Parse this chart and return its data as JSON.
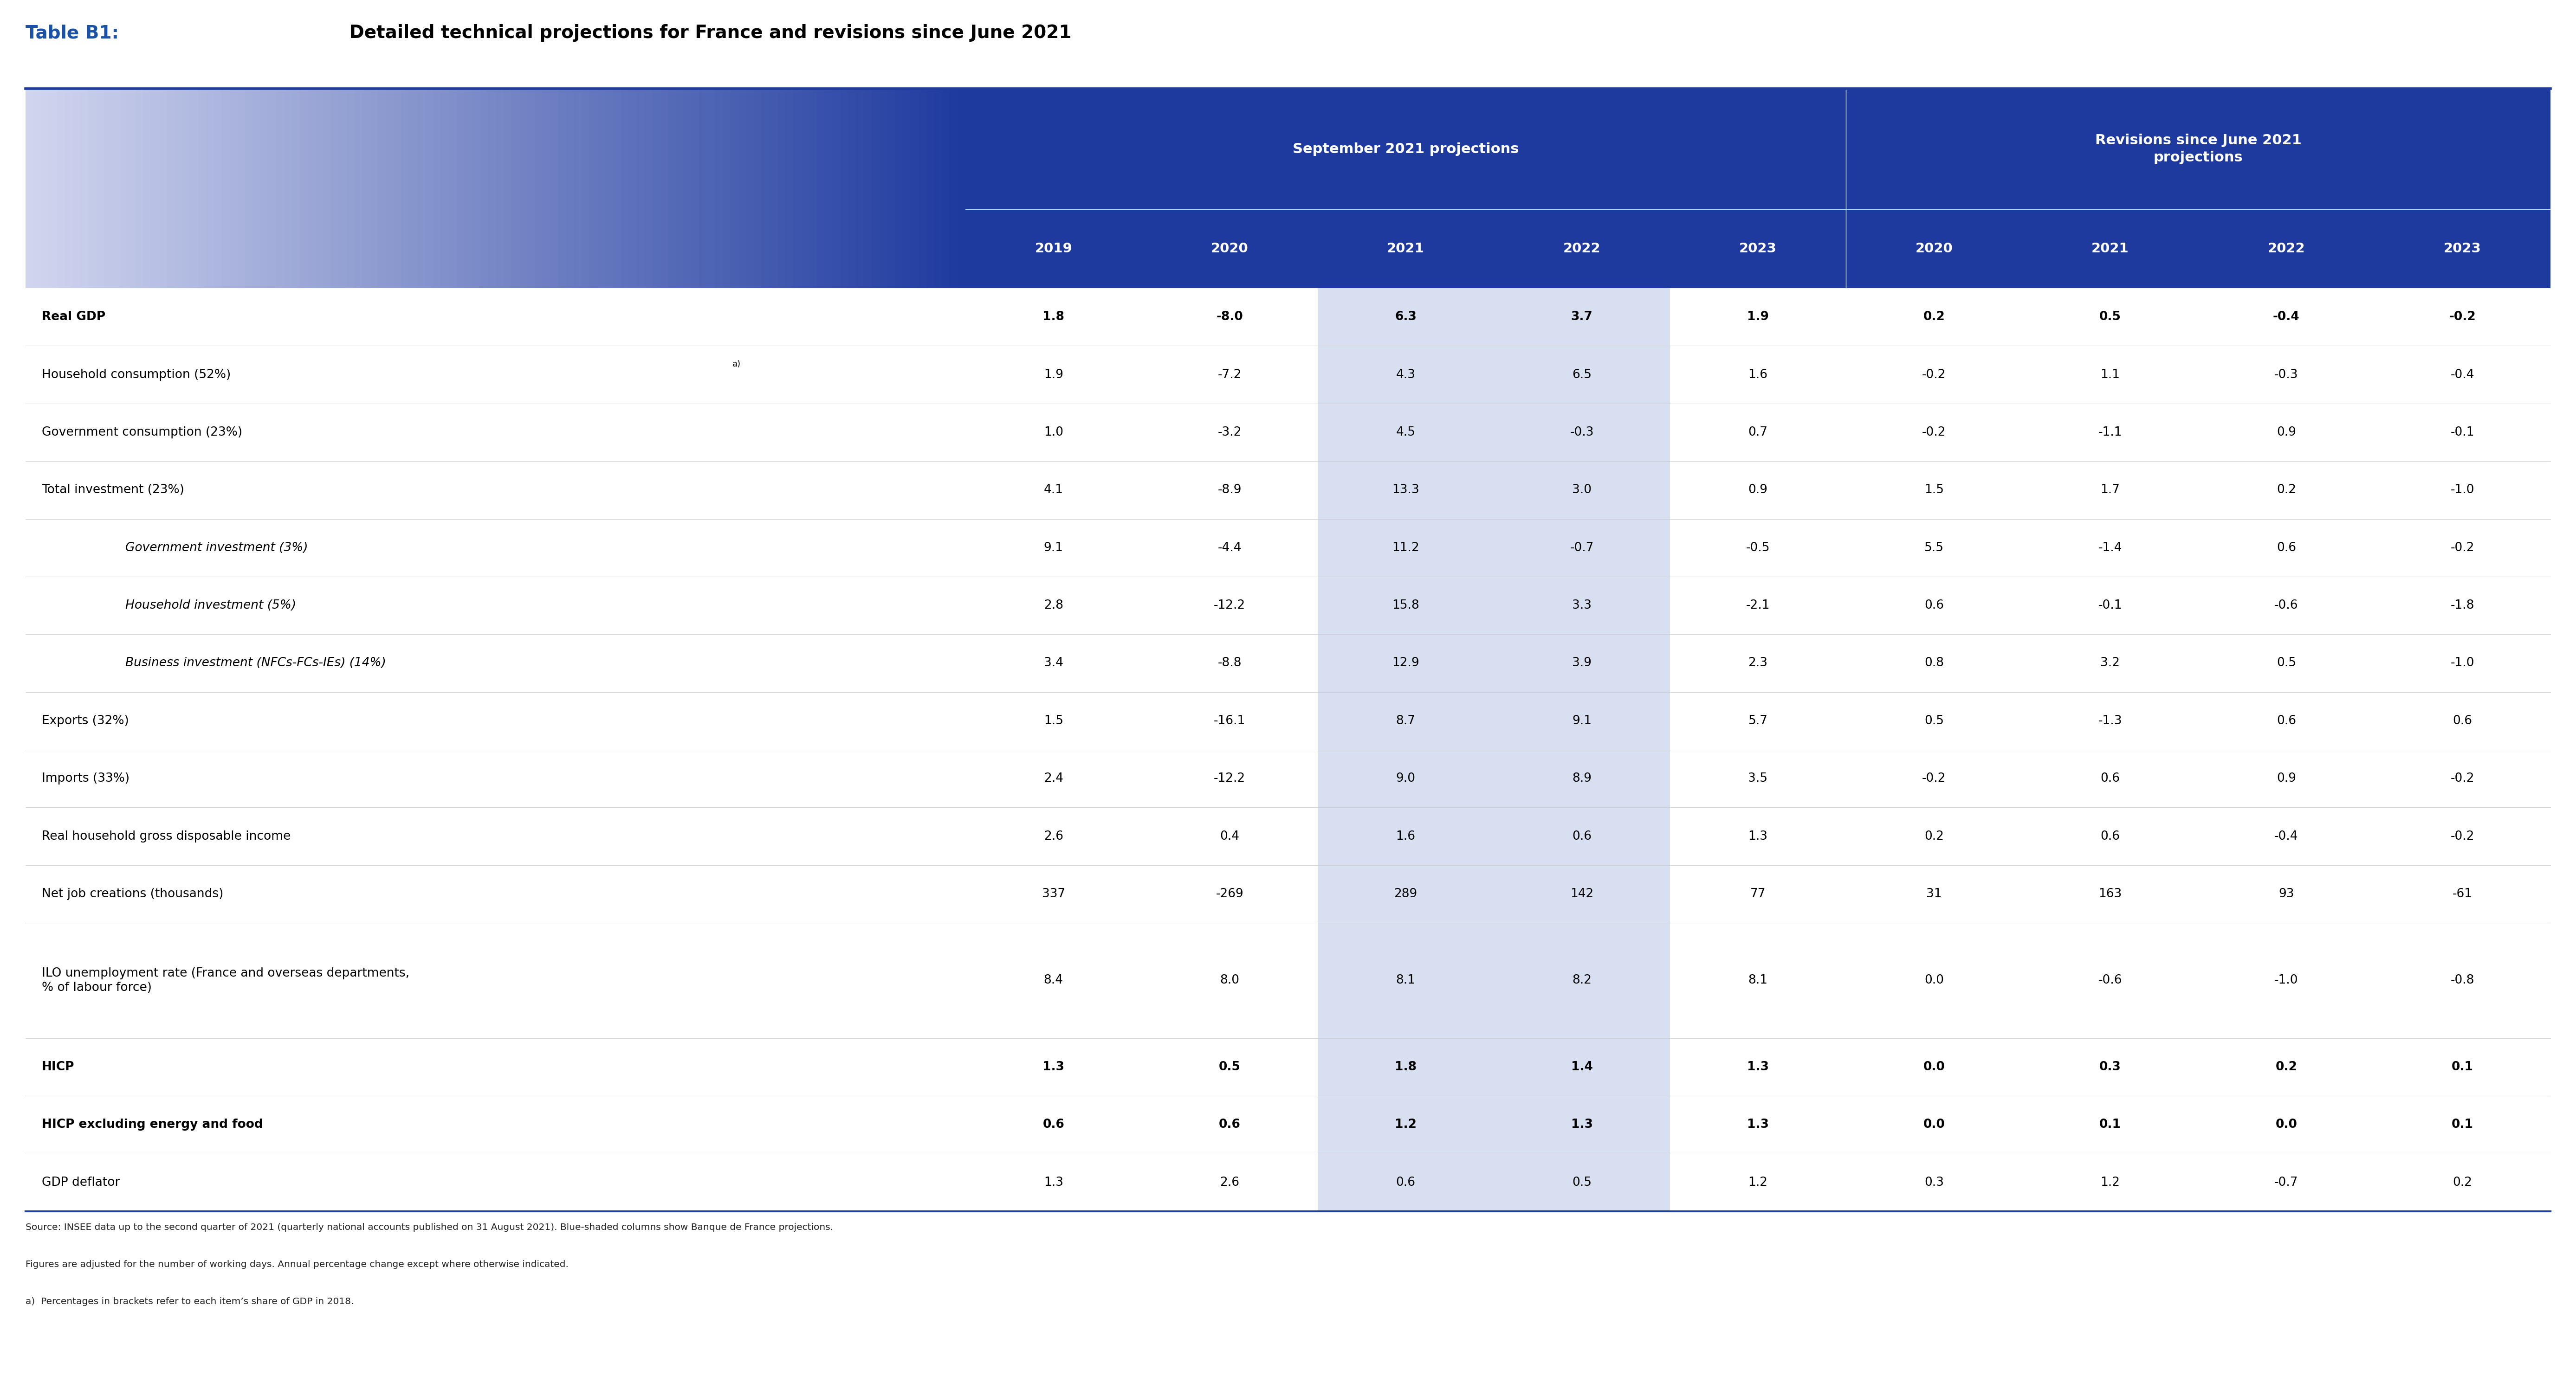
{
  "title_prefix": "Table B1:",
  "title_rest": " Detailed technical projections for France and revisions since June 2021",
  "header1_left": "September 2021 projections",
  "header1_right": "Revisions since June 2021\nprojections",
  "col_years": [
    "2019",
    "2020",
    "2021",
    "2022",
    "2023",
    "2020",
    "2021",
    "2022",
    "2023"
  ],
  "rows": [
    {
      "label": "Real GDP",
      "bold": true,
      "italic": false,
      "indent": 0,
      "values": [
        "1.8",
        "-8.0",
        "6.3",
        "3.7",
        "1.9",
        "0.2",
        "0.5",
        "-0.4",
        "-0.2"
      ]
    },
    {
      "label": "Household consumption (52%)",
      "label_superscript": "a)",
      "bold": false,
      "italic": false,
      "indent": 0,
      "values": [
        "1.9",
        "-7.2",
        "4.3",
        "6.5",
        "1.6",
        "-0.2",
        "1.1",
        "-0.3",
        "-0.4"
      ]
    },
    {
      "label": "Government consumption (23%)",
      "bold": false,
      "italic": false,
      "indent": 0,
      "values": [
        "1.0",
        "-3.2",
        "4.5",
        "-0.3",
        "0.7",
        "-0.2",
        "-1.1",
        "0.9",
        "-0.1"
      ]
    },
    {
      "label": "Total investment (23%)",
      "bold": false,
      "italic": false,
      "indent": 0,
      "values": [
        "4.1",
        "-8.9",
        "13.3",
        "3.0",
        "0.9",
        "1.5",
        "1.7",
        "0.2",
        "-1.0"
      ]
    },
    {
      "label": "Government investment (3%)",
      "bold": false,
      "italic": true,
      "indent": 1,
      "values": [
        "9.1",
        "-4.4",
        "11.2",
        "-0.7",
        "-0.5",
        "5.5",
        "-1.4",
        "0.6",
        "-0.2"
      ]
    },
    {
      "label": "Household investment (5%)",
      "bold": false,
      "italic": true,
      "indent": 1,
      "values": [
        "2.8",
        "-12.2",
        "15.8",
        "3.3",
        "-2.1",
        "0.6",
        "-0.1",
        "-0.6",
        "-1.8"
      ]
    },
    {
      "label": "Business investment (NFCs-FCs-IEs) (14%)",
      "bold": false,
      "italic": true,
      "indent": 1,
      "values": [
        "3.4",
        "-8.8",
        "12.9",
        "3.9",
        "2.3",
        "0.8",
        "3.2",
        "0.5",
        "-1.0"
      ]
    },
    {
      "label": "Exports (32%)",
      "bold": false,
      "italic": false,
      "indent": 0,
      "values": [
        "1.5",
        "-16.1",
        "8.7",
        "9.1",
        "5.7",
        "0.5",
        "-1.3",
        "0.6",
        "0.6"
      ]
    },
    {
      "label": "Imports (33%)",
      "bold": false,
      "italic": false,
      "indent": 0,
      "values": [
        "2.4",
        "-12.2",
        "9.0",
        "8.9",
        "3.5",
        "-0.2",
        "0.6",
        "0.9",
        "-0.2"
      ]
    },
    {
      "label": "Real household gross disposable income",
      "bold": false,
      "italic": false,
      "indent": 0,
      "values": [
        "2.6",
        "0.4",
        "1.6",
        "0.6",
        "1.3",
        "0.2",
        "0.6",
        "-0.4",
        "-0.2"
      ]
    },
    {
      "label": "Net job creations (thousands)",
      "bold": false,
      "italic": false,
      "indent": 0,
      "values": [
        "337",
        "-269",
        "289",
        "142",
        "77",
        "31",
        "163",
        "93",
        "-61"
      ]
    },
    {
      "label": "ILO unemployment rate (France and overseas departments,\n% of labour force)",
      "bold": false,
      "italic": false,
      "indent": 0,
      "multiline": true,
      "values": [
        "8.4",
        "8.0",
        "8.1",
        "8.2",
        "8.1",
        "0.0",
        "-0.6",
        "-1.0",
        "-0.8"
      ]
    },
    {
      "label": "HICP",
      "bold": true,
      "italic": false,
      "indent": 0,
      "values": [
        "1.3",
        "0.5",
        "1.8",
        "1.4",
        "1.3",
        "0.0",
        "0.3",
        "0.2",
        "0.1"
      ]
    },
    {
      "label": "HICP excluding energy and food",
      "bold": true,
      "italic": false,
      "indent": 0,
      "values": [
        "0.6",
        "0.6",
        "1.2",
        "1.3",
        "1.3",
        "0.0",
        "0.1",
        "0.0",
        "0.1"
      ]
    },
    {
      "label": "GDP deflator",
      "bold": false,
      "italic": false,
      "indent": 0,
      "values": [
        "1.3",
        "2.6",
        "0.6",
        "0.5",
        "1.2",
        "0.3",
        "1.2",
        "-0.7",
        "0.2"
      ]
    }
  ],
  "footnotes": [
    "Source: INSEE data up to the second quarter of 2021 (quarterly national accounts published on 31 August 2021). Blue-shaded columns show Banque de France projections.",
    "Figures are adjusted for the number of working days. Annual percentage change except where otherwise indicated.",
    "a)  Percentages in brackets refer to each item’s share of GDP in 2018."
  ],
  "bg_color": "#ffffff",
  "header_bg_dark": "#1e3a9e",
  "shaded_col_bg": "#d8dff0",
  "title_blue": "#1a52a8",
  "sep_line_color": "#cccccc",
  "bottom_line_color": "#1e3a9e",
  "shaded_cols": [
    2,
    3
  ]
}
